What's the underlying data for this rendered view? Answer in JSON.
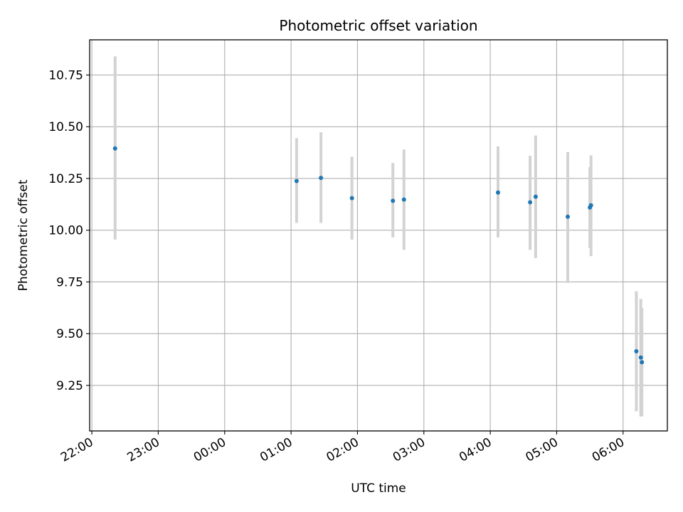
{
  "chart_data": {
    "type": "scatter",
    "title": "Photometric offset variation",
    "xlabel": "UTC time",
    "ylabel": "Photometric offset",
    "x_is_time": true,
    "xlim": [
      "21:58",
      "06:40"
    ],
    "ylim": [
      9.03,
      10.92
    ],
    "x_ticks": [
      "22:00",
      "23:00",
      "00:00",
      "01:00",
      "02:00",
      "03:00",
      "04:00",
      "05:00",
      "06:00"
    ],
    "y_ticks": [
      9.25,
      9.5,
      9.75,
      10.0,
      10.25,
      10.5,
      10.75
    ],
    "y_tick_labels": [
      "9.25",
      "9.50",
      "9.75",
      "10.00",
      "10.25",
      "10.50",
      "10.75"
    ],
    "grid": true,
    "colors": {
      "point": "#1f77b4",
      "errorbar": "#d3d3d3",
      "grid": "#b0b0b0"
    },
    "series": [
      {
        "points": [
          {
            "x": "22:21",
            "y": 10.395,
            "ylow": 9.955,
            "yhigh": 10.84
          },
          {
            "x": "01:05",
            "y": 10.238,
            "ylow": 10.035,
            "yhigh": 10.445
          },
          {
            "x": "01:27",
            "y": 10.253,
            "ylow": 10.035,
            "yhigh": 10.473
          },
          {
            "x": "01:55",
            "y": 10.155,
            "ylow": 9.955,
            "yhigh": 10.355
          },
          {
            "x": "02:32",
            "y": 10.142,
            "ylow": 9.965,
            "yhigh": 10.325
          },
          {
            "x": "02:42",
            "y": 10.148,
            "ylow": 9.905,
            "yhigh": 10.39
          },
          {
            "x": "04:07",
            "y": 10.182,
            "ylow": 9.965,
            "yhigh": 10.405
          },
          {
            "x": "04:36",
            "y": 10.135,
            "ylow": 9.905,
            "yhigh": 10.36
          },
          {
            "x": "04:41",
            "y": 10.162,
            "ylow": 9.865,
            "yhigh": 10.458
          },
          {
            "x": "05:10",
            "y": 10.065,
            "ylow": 9.745,
            "yhigh": 10.378
          },
          {
            "x": "05:30",
            "y": 10.11,
            "ylow": 9.915,
            "yhigh": 10.305
          },
          {
            "x": "05:31",
            "y": 10.12,
            "ylow": 9.875,
            "yhigh": 10.362
          },
          {
            "x": "06:12",
            "y": 9.415,
            "ylow": 9.125,
            "yhigh": 9.705
          },
          {
            "x": "06:16",
            "y": 9.385,
            "ylow": 9.1,
            "yhigh": 9.668
          },
          {
            "x": "06:17",
            "y": 9.362,
            "ylow": 9.1,
            "yhigh": 9.625
          }
        ]
      }
    ]
  }
}
